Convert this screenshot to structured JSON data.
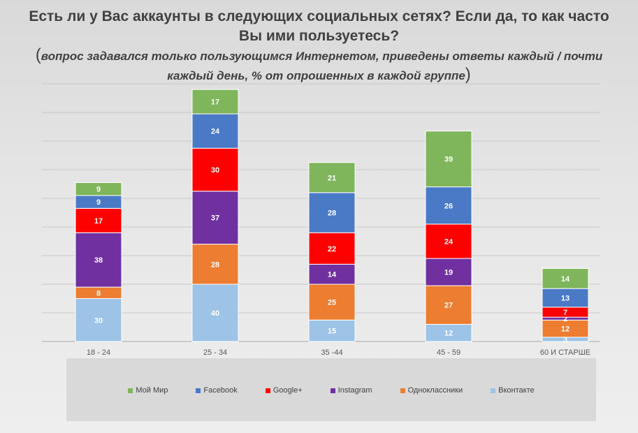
{
  "colors": {
    "mir": "#7fb55b",
    "facebook": "#4a79c6",
    "google": "#ff0000",
    "instagram": "#7030a0",
    "odnoklassniki": "#ed7d31",
    "vk": "#9dc3e6"
  },
  "chart_data": {
    "type": "bar",
    "stacked": true,
    "title": "Есть ли у Вас аккаунты в следующих социальных сетях? Если да, то как часто Вы ими пользуетесь?",
    "subtitle_prefix": "(",
    "subtitle": "вопрос задавался только пользующимся Интернетом, приведены ответы каждый / почти каждый день, % от опрошенных в каждой группе",
    "subtitle_suffix": ")",
    "categories": [
      "18 - 24",
      "25 - 34",
      "35 -44",
      "45 - 59",
      "60 И СТАРШЕ"
    ],
    "ylim": [
      0,
      180
    ],
    "grid": true,
    "legend_position": "bottom",
    "series": [
      {
        "name": "Вконтакте",
        "color_key": "vk",
        "values": [
          30,
          40,
          15,
          12,
          3
        ]
      },
      {
        "name": "Одноклассники",
        "color_key": "odnoklassniki",
        "values": [
          8,
          28,
          25,
          27,
          12
        ]
      },
      {
        "name": "Instagram",
        "color_key": "instagram",
        "values": [
          38,
          37,
          14,
          19,
          2
        ]
      },
      {
        "name": "Google+",
        "color_key": "google",
        "values": [
          17,
          30,
          22,
          24,
          7
        ]
      },
      {
        "name": "Facebook",
        "color_key": "facebook",
        "values": [
          9,
          24,
          28,
          26,
          13
        ]
      },
      {
        "name": "Мой Мир",
        "color_key": "mir",
        "values": [
          9,
          17,
          21,
          39,
          14
        ]
      }
    ],
    "legend_order": [
      "Мой Мир",
      "Facebook",
      "Google+",
      "Instagram",
      "Одноклассники",
      "Вконтакте"
    ]
  }
}
